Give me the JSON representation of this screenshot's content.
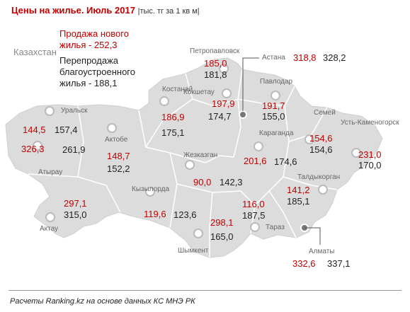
{
  "title": "Цены на жилье. Июль 2017",
  "unit": "|тыс. тг за 1 кв м|",
  "country": "Казахстан",
  "legend": {
    "new_line1": "Продажа нового",
    "new_line2": "жилья - 252,3",
    "resale_line1": "Перепродажа",
    "resale_line2": "благоустроенного",
    "resale_line3": "жилья - 188,1"
  },
  "cities": [
    {
      "name": "Петропавловск",
      "new": "185,0",
      "resale": "181,8"
    },
    {
      "name": "Астана",
      "new": "318,8",
      "resale": "328,2"
    },
    {
      "name": "Костанай",
      "new": "186,9",
      "resale": "175,1"
    },
    {
      "name": "Кокшетау",
      "new": "197,9",
      "resale": "174,7"
    },
    {
      "name": "Павлодар",
      "new": "191,7",
      "resale": "155,0"
    },
    {
      "name": "Уральск",
      "new": "144,5",
      "resale": "157,4"
    },
    {
      "name": "Атырау",
      "new": "326,3",
      "resale": "261,9"
    },
    {
      "name": "Актобе",
      "new": "148,7",
      "resale": "152,2"
    },
    {
      "name": "Караганда",
      "new": "201,6",
      "resale": "174,6"
    },
    {
      "name": "Семей",
      "new": "154,6",
      "resale": "154,6"
    },
    {
      "name": "Усть-Каменогорск",
      "new": "231,0",
      "resale": "170,0"
    },
    {
      "name": "Жезказган",
      "new": "90,0",
      "resale": "142,3"
    },
    {
      "name": "Кызылорда",
      "new": "119,6",
      "resale": "123,6"
    },
    {
      "name": "Талдыкорган",
      "new": "141,2",
      "resale": "185,1"
    },
    {
      "name": "Актау",
      "new": "297,1",
      "resale": "315,0"
    },
    {
      "name": "Тараз",
      "new": "116,0",
      "resale": "187,5"
    },
    {
      "name": "Шымкент",
      "new": "298,1",
      "resale": "165,0"
    },
    {
      "name": "Алматы",
      "new": "332,6",
      "resale": "337,1"
    }
  ],
  "footer": "Расчеты Ranking.kz на основе данных КС МНЭ РК",
  "colors": {
    "map_fill": "#dcdcdc",
    "new_price": "#c00000",
    "resale_price": "#222222",
    "marker_fill": "#ffffff",
    "capital_marker": "#777777"
  }
}
